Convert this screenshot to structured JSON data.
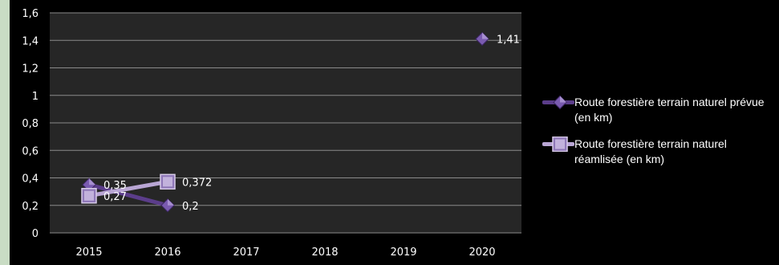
{
  "chart_data": {
    "type": "line",
    "title": "",
    "xlabel": "",
    "ylabel": "",
    "categories": [
      "2015",
      "2016",
      "2017",
      "2018",
      "2019",
      "2020"
    ],
    "ylim": [
      0,
      1.6
    ],
    "yticks": [
      "0",
      "0,2",
      "0,4",
      "0,6",
      "0,8",
      "1",
      "1,2",
      "1,4",
      "1,6"
    ],
    "grid": true,
    "legend_position": "right",
    "series": [
      {
        "name": "Route forestière terrain naturel prévue (en km)",
        "marker": "diamond",
        "color": "#5b3d8a",
        "points": [
          {
            "x": "2015",
            "y": 0.35,
            "label": "0,35"
          },
          {
            "x": "2016",
            "y": 0.2,
            "label": "0,2"
          },
          {
            "x": "2020",
            "y": 1.41,
            "label": "1,41"
          }
        ],
        "connected": [
          [
            "2015",
            "2016"
          ]
        ]
      },
      {
        "name": "Route forestière terrain naturel réamlisée (en km)",
        "marker": "square",
        "color": "#b9a6d4",
        "points": [
          {
            "x": "2015",
            "y": 0.27,
            "label": "0,27"
          },
          {
            "x": "2016",
            "y": 0.372,
            "label": "0,372"
          }
        ],
        "connected": [
          [
            "2015",
            "2016"
          ]
        ]
      }
    ],
    "colors": {
      "plot_background": "#262626",
      "gridline": "#8a8a8a",
      "page_background": "#000000"
    }
  }
}
